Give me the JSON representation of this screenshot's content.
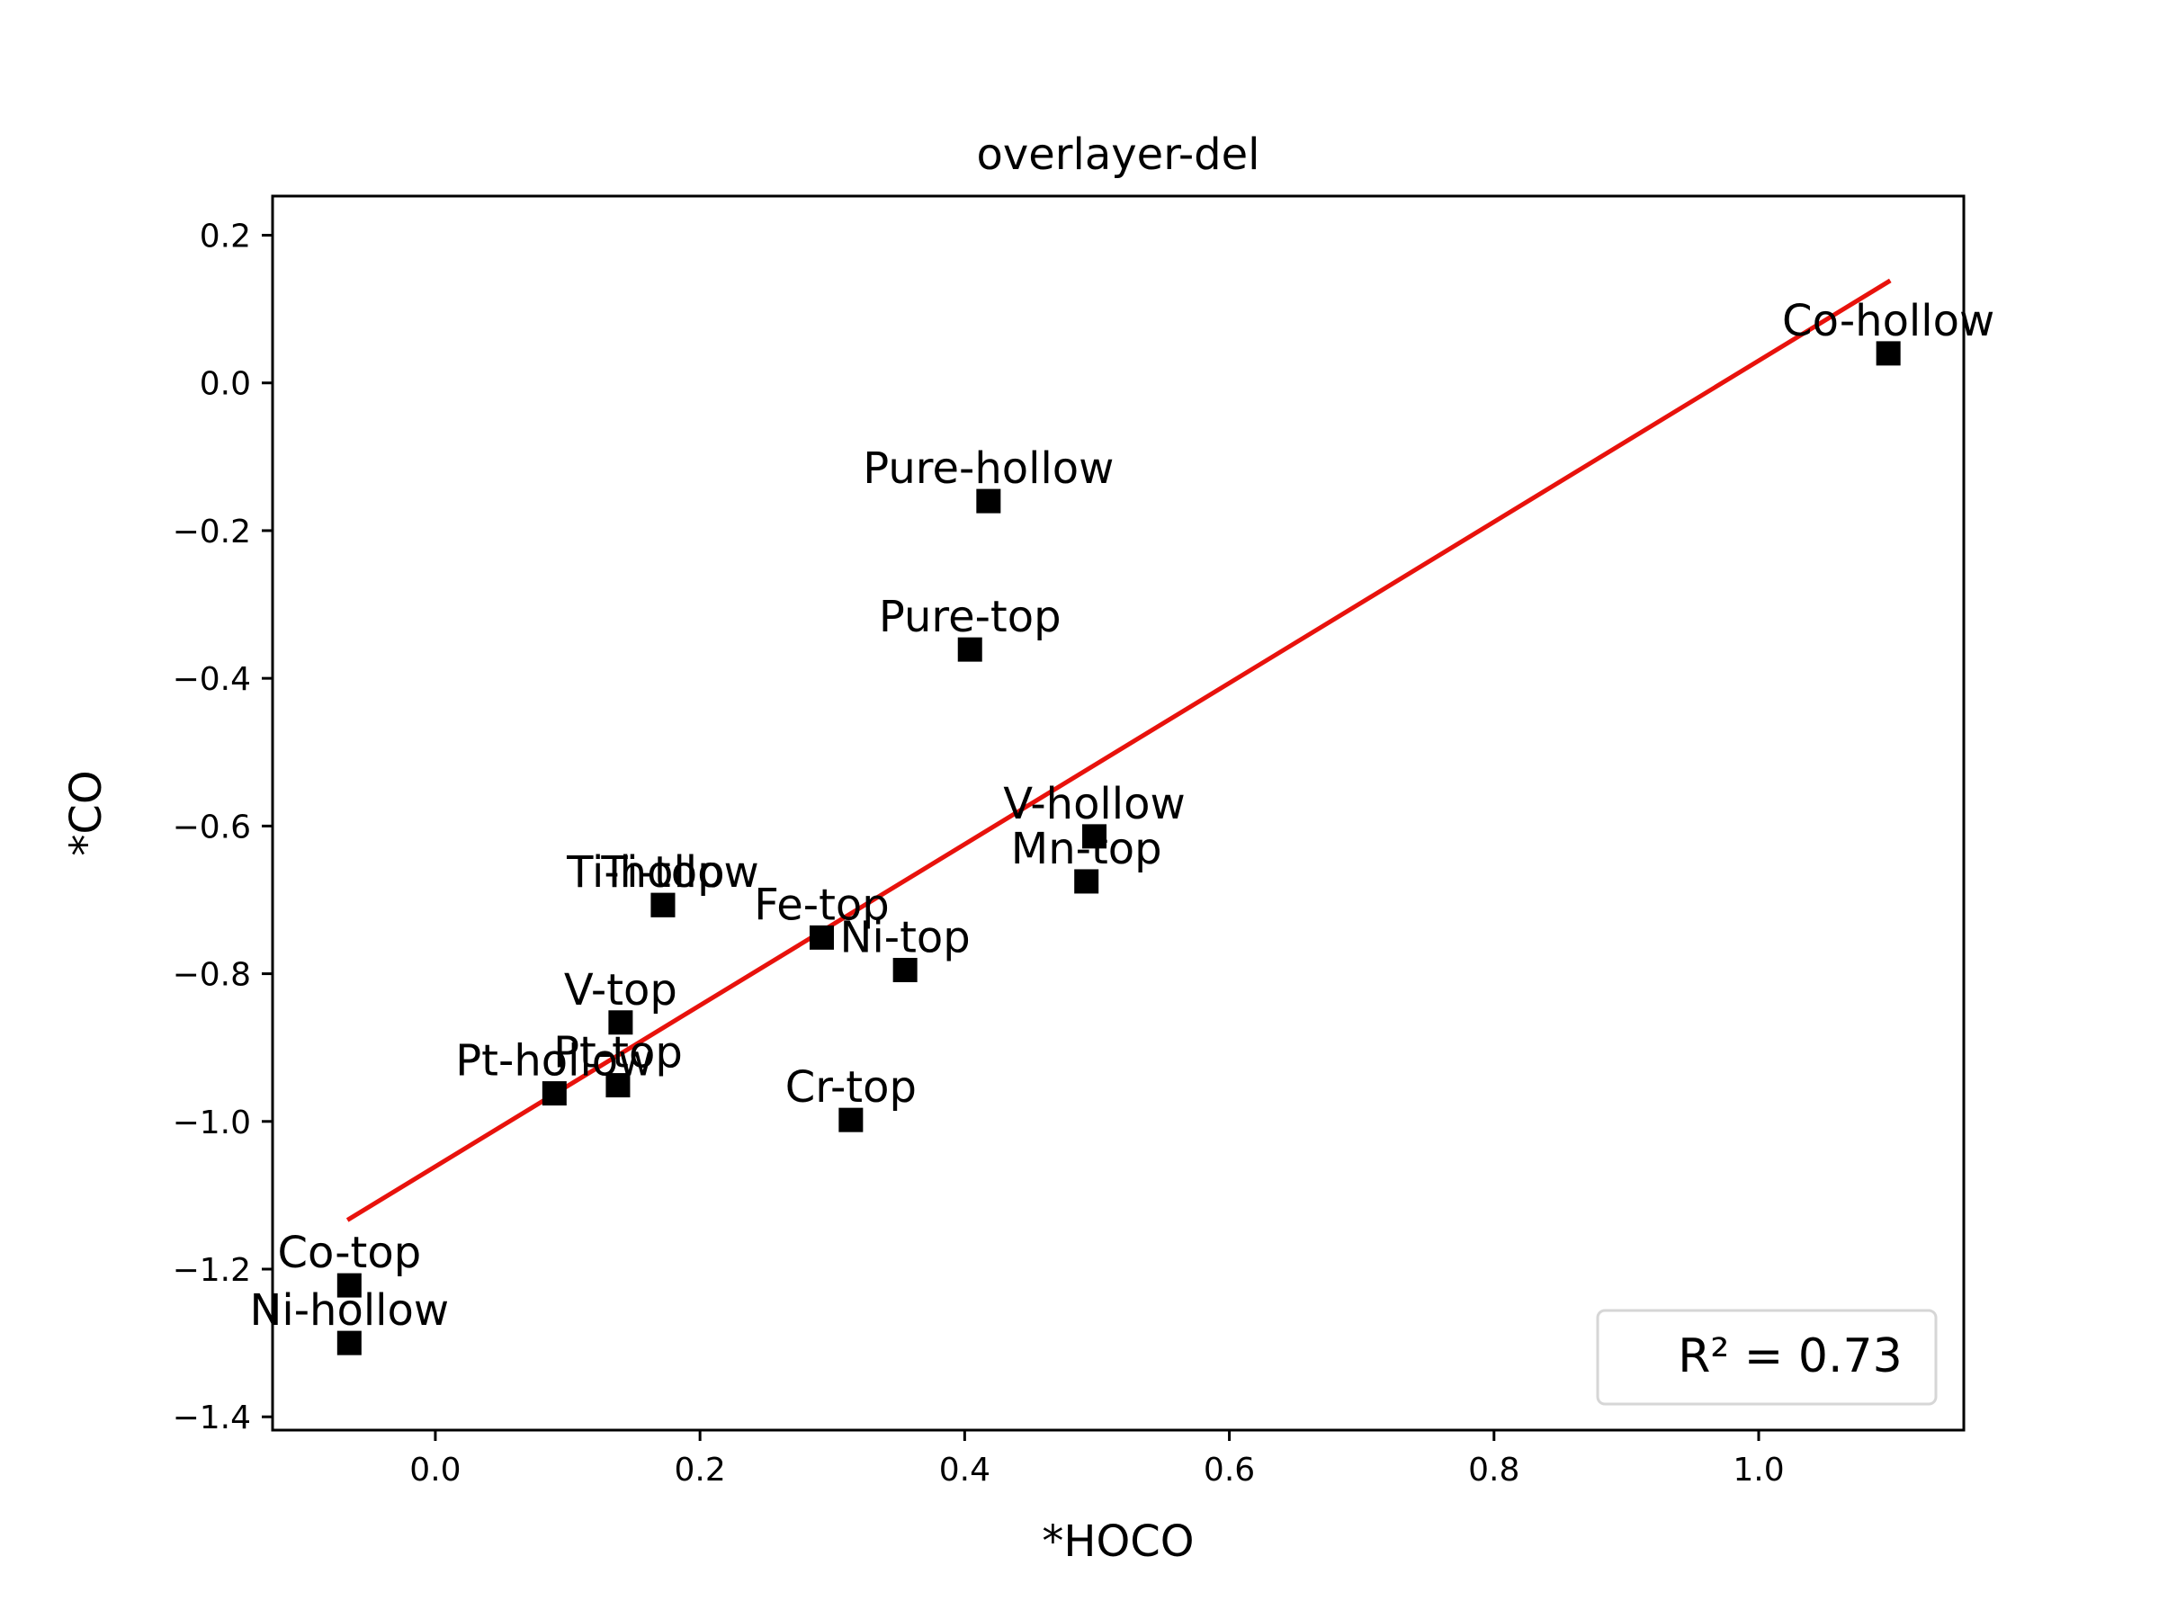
{
  "chart_data": {
    "type": "scatter",
    "title": "overlayer-del",
    "xlabel": "*HOCO",
    "ylabel": "*CO",
    "xlim": [
      -0.123,
      1.155
    ],
    "ylim": [
      -1.418,
      0.253
    ],
    "xticks": [
      0.0,
      0.2,
      0.4,
      0.6,
      0.8,
      1.0
    ],
    "xtick_labels": [
      "0.0",
      "0.2",
      "0.4",
      "0.6",
      "0.8",
      "1.0"
    ],
    "yticks": [
      0.2,
      0.0,
      -0.2,
      -0.4,
      -0.6,
      -0.8,
      -1.0,
      -1.2,
      -1.4
    ],
    "ytick_labels": [
      "0.2",
      "0.0",
      "−0.2",
      "−0.4",
      "−0.6",
      "−0.8",
      "−1.0",
      "−1.2",
      "−1.4"
    ],
    "grid": false,
    "marker": "square",
    "marker_color": "#000000",
    "points": [
      {
        "label": "Co-hollow",
        "x": 1.098,
        "y": 0.04
      },
      {
        "label": "Pure-hollow",
        "x": 0.418,
        "y": -0.16
      },
      {
        "label": "Pure-top",
        "x": 0.404,
        "y": -0.361
      },
      {
        "label": "V-hollow",
        "x": 0.498,
        "y": -0.614
      },
      {
        "label": "Mn-top",
        "x": 0.492,
        "y": -0.675
      },
      {
        "label": "Ti-top",
        "x": 0.172,
        "y": -0.707
      },
      {
        "label": "Ti-hollow",
        "x": 0.172,
        "y": -0.707
      },
      {
        "label": "Fe-top",
        "x": 0.292,
        "y": -0.751
      },
      {
        "label": "Ni-top",
        "x": 0.355,
        "y": -0.795
      },
      {
        "label": "V-top",
        "x": 0.14,
        "y": -0.866
      },
      {
        "label": "Pt-top",
        "x": 0.138,
        "y": -0.951
      },
      {
        "label": "Pt-hollow",
        "x": 0.09,
        "y": -0.962
      },
      {
        "label": "Cr-top",
        "x": 0.314,
        "y": -0.998
      },
      {
        "label": "Co-top",
        "x": -0.065,
        "y": -1.222
      },
      {
        "label": "Ni-hollow",
        "x": -0.065,
        "y": -1.3
      }
    ],
    "fit_line": {
      "x": [
        -0.065,
        1.098
      ],
      "y": [
        -1.132,
        0.137
      ],
      "color": "#e8120c"
    },
    "legend": {
      "text": "R² = 0.73",
      "position": "lower-right"
    }
  }
}
